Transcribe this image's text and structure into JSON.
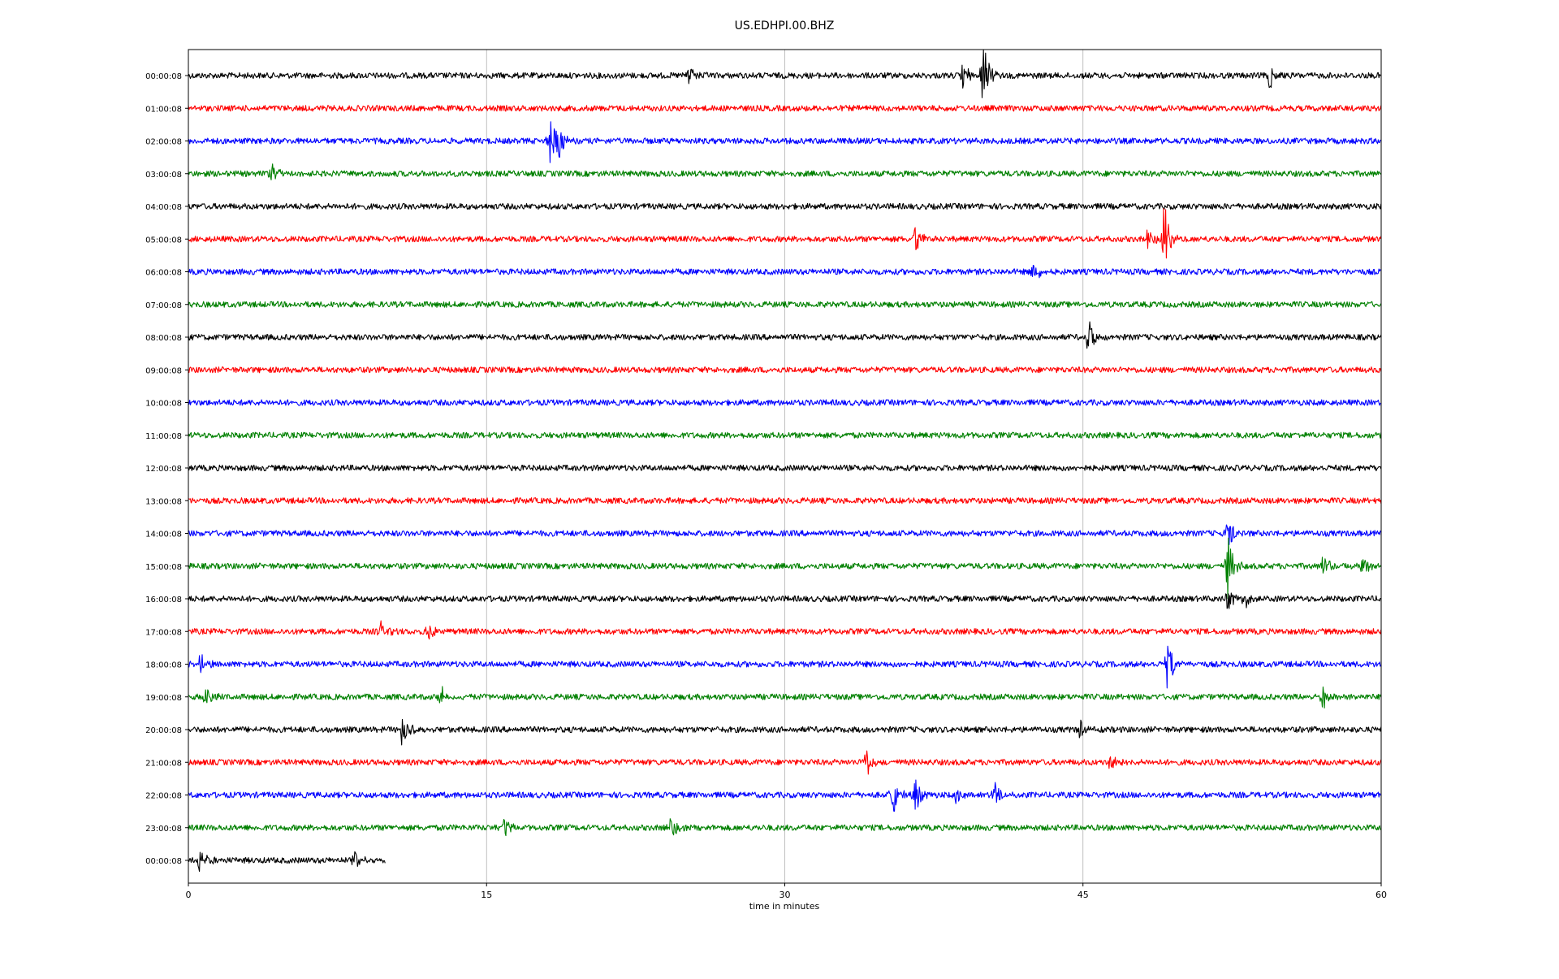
{
  "chart_data": {
    "type": "line",
    "title": "US.EDHPI.00.BHZ",
    "xlabel": "time in minutes",
    "ylabel": "",
    "xlim": [
      0,
      60
    ],
    "xticks": [
      0,
      15,
      30,
      45,
      60
    ],
    "grid": "vertical",
    "colors": [
      "#000000",
      "#ff0000",
      "#0000ff",
      "#008000"
    ],
    "row_labels": [
      "00:00:08",
      "01:00:08",
      "02:00:08",
      "03:00:08",
      "04:00:08",
      "05:00:08",
      "06:00:08",
      "07:00:08",
      "08:00:08",
      "09:00:08",
      "10:00:08",
      "11:00:08",
      "12:00:08",
      "13:00:08",
      "14:00:08",
      "15:00:08",
      "16:00:08",
      "17:00:08",
      "18:00:08",
      "19:00:08",
      "20:00:08",
      "21:00:08",
      "22:00:08",
      "23:00:08",
      "00:00:08"
    ],
    "row_end_minute": [
      60,
      60,
      60,
      60,
      60,
      60,
      60,
      60,
      60,
      60,
      60,
      60,
      60,
      60,
      60,
      60,
      60,
      60,
      60,
      60,
      60,
      60,
      60,
      60,
      9.9
    ],
    "events": [
      {
        "row": 0,
        "minute": 25.1,
        "amp": 0.3
      },
      {
        "row": 0,
        "minute": 38.9,
        "amp": 0.45
      },
      {
        "row": 0,
        "minute": 39.9,
        "amp": 0.9
      },
      {
        "row": 0,
        "minute": 54.3,
        "amp": 0.4
      },
      {
        "row": 2,
        "minute": 18.1,
        "amp": 0.85
      },
      {
        "row": 2,
        "minute": 18.5,
        "amp": 0.6
      },
      {
        "row": 3,
        "minute": 4.1,
        "amp": 0.3
      },
      {
        "row": 5,
        "minute": 36.5,
        "amp": 0.4
      },
      {
        "row": 5,
        "minute": 48.2,
        "amp": 0.3
      },
      {
        "row": 5,
        "minute": 49.0,
        "amp": 0.95
      },
      {
        "row": 6,
        "minute": 42.4,
        "amp": 0.35
      },
      {
        "row": 8,
        "minute": 45.2,
        "amp": 0.5
      },
      {
        "row": 14,
        "minute": 52.2,
        "amp": 0.5
      },
      {
        "row": 15,
        "minute": 52.2,
        "amp": 0.95
      },
      {
        "row": 15,
        "minute": 57.0,
        "amp": 0.3
      },
      {
        "row": 15,
        "minute": 59.0,
        "amp": 0.3
      },
      {
        "row": 16,
        "minute": 52.2,
        "amp": 0.35
      },
      {
        "row": 16,
        "minute": 53.1,
        "amp": 0.3
      },
      {
        "row": 17,
        "minute": 9.6,
        "amp": 0.3
      },
      {
        "row": 17,
        "minute": 12.0,
        "amp": 0.3
      },
      {
        "row": 18,
        "minute": 0.5,
        "amp": 0.3
      },
      {
        "row": 18,
        "minute": 49.2,
        "amp": 0.7
      },
      {
        "row": 19,
        "minute": 0.8,
        "amp": 0.4
      },
      {
        "row": 19,
        "minute": 12.6,
        "amp": 0.3
      },
      {
        "row": 19,
        "minute": 57.0,
        "amp": 0.35
      },
      {
        "row": 20,
        "minute": 10.7,
        "amp": 0.55
      },
      {
        "row": 20,
        "minute": 44.8,
        "amp": 0.3
      },
      {
        "row": 21,
        "minute": 34.0,
        "amp": 0.45
      },
      {
        "row": 21,
        "minute": 46.3,
        "amp": 0.3
      },
      {
        "row": 22,
        "minute": 35.3,
        "amp": 0.75
      },
      {
        "row": 22,
        "minute": 36.5,
        "amp": 0.5
      },
      {
        "row": 22,
        "minute": 38.6,
        "amp": 0.45
      },
      {
        "row": 22,
        "minute": 40.5,
        "amp": 0.4
      },
      {
        "row": 23,
        "minute": 15.8,
        "amp": 0.35
      },
      {
        "row": 23,
        "minute": 24.2,
        "amp": 0.3
      },
      {
        "row": 24,
        "minute": 0.5,
        "amp": 0.45
      },
      {
        "row": 24,
        "minute": 8.3,
        "amp": 0.3
      }
    ]
  }
}
